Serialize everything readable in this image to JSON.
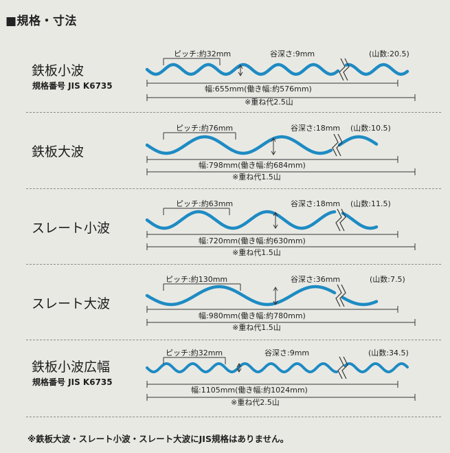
{
  "header": "■規格・寸法",
  "colors": {
    "wave": "#1e8bc3",
    "text": "#1d1d1d",
    "background": "#e9e9e4"
  },
  "products": [
    {
      "name": "鉄板小波",
      "code": "規格番号 JIS K6735",
      "pitch": "ピッチ:約32mm",
      "depth": "谷深さ:9mm",
      "ridges": "(山数:20.5)",
      "width": "幅:655mm(働き幅:約576mm)",
      "overlap": "※重ね代2.5山"
    },
    {
      "name": "鉄板大波",
      "code": "",
      "pitch": "ピッチ:約76mm",
      "depth": "谷深さ:18mm",
      "ridges": "(山数:10.5)",
      "width": "幅:798mm(働き幅:約684mm)",
      "overlap": "※重ね代1.5山"
    },
    {
      "name": "スレート小波",
      "code": "",
      "pitch": "ピッチ:約63mm",
      "depth": "谷深さ:18mm",
      "ridges": "(山数:11.5)",
      "width": "幅:720mm(働き幅:約630mm)",
      "overlap": "※重ね代1.5山"
    },
    {
      "name": "スレート大波",
      "code": "",
      "pitch": "ピッチ:約130mm",
      "depth": "谷深さ:36mm",
      "ridges": "(山数:7.5)",
      "width": "幅:980mm(働き幅:約780mm)",
      "overlap": "※重ね代1.5山"
    },
    {
      "name": "鉄板小波広幅",
      "code": "規格番号 JIS K6735",
      "pitch": "ピッチ:約32mm",
      "depth": "谷深さ:9mm",
      "ridges": "(山数:34.5)",
      "width": "幅:1105mm(働き幅:約1024mm)",
      "overlap": "※重ね代2.5山"
    }
  ],
  "footnote": "※鉄板大波・スレート小波・スレート大波にJIS規格はありません。"
}
